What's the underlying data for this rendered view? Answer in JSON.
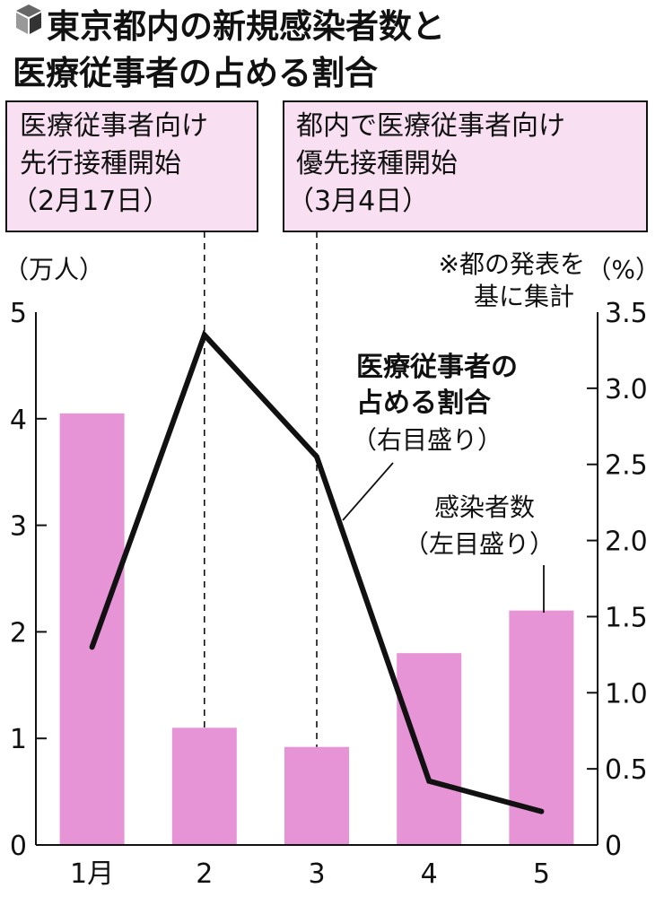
{
  "title": {
    "line1": "東京都内の新規感染者数と",
    "line2": "医療従事者の占める割合"
  },
  "colors": {
    "bar": "#e694d6",
    "box_fill": "#f8e0f2",
    "line": "#111111"
  },
  "annotations": {
    "box1": {
      "lines": [
        "医療従事者向け",
        "先行接種開始",
        "（2月17日）"
      ]
    },
    "box2": {
      "lines": [
        "都内で医療従事者向け",
        "優先接種開始",
        "（3月4日）"
      ]
    },
    "source_note": [
      "※都の発表を",
      "基に集計"
    ],
    "line_label": {
      "lines": [
        "医療従事者の",
        "占める割合"
      ],
      "scale": "（右目盛り）"
    },
    "bar_label": {
      "lines": [
        "感染者数"
      ],
      "scale": "（左目盛り）"
    }
  },
  "chart_data": {
    "type": "bar+line",
    "categories": [
      "1月",
      "2",
      "3",
      "4",
      "5"
    ],
    "series": [
      {
        "name": "感染者数",
        "type": "bar",
        "axis": "left",
        "values": [
          4.05,
          1.1,
          0.92,
          1.8,
          2.2
        ]
      },
      {
        "name": "医療従事者の占める割合",
        "type": "line",
        "axis": "right",
        "values": [
          1.3,
          3.35,
          2.55,
          0.42,
          0.22
        ]
      }
    ],
    "left_axis": {
      "unit": "（万人）",
      "range": [
        0,
        5
      ],
      "ticks": [
        "0",
        "1",
        "2",
        "3",
        "4",
        "5"
      ]
    },
    "right_axis": {
      "unit": "（%）",
      "range": [
        0,
        3.5
      ],
      "ticks": [
        "0",
        "0.5",
        "1.0",
        "1.5",
        "2.0",
        "2.5",
        "3.0",
        "3.5"
      ]
    },
    "event_lines_after_category": [
      1,
      2
    ]
  }
}
